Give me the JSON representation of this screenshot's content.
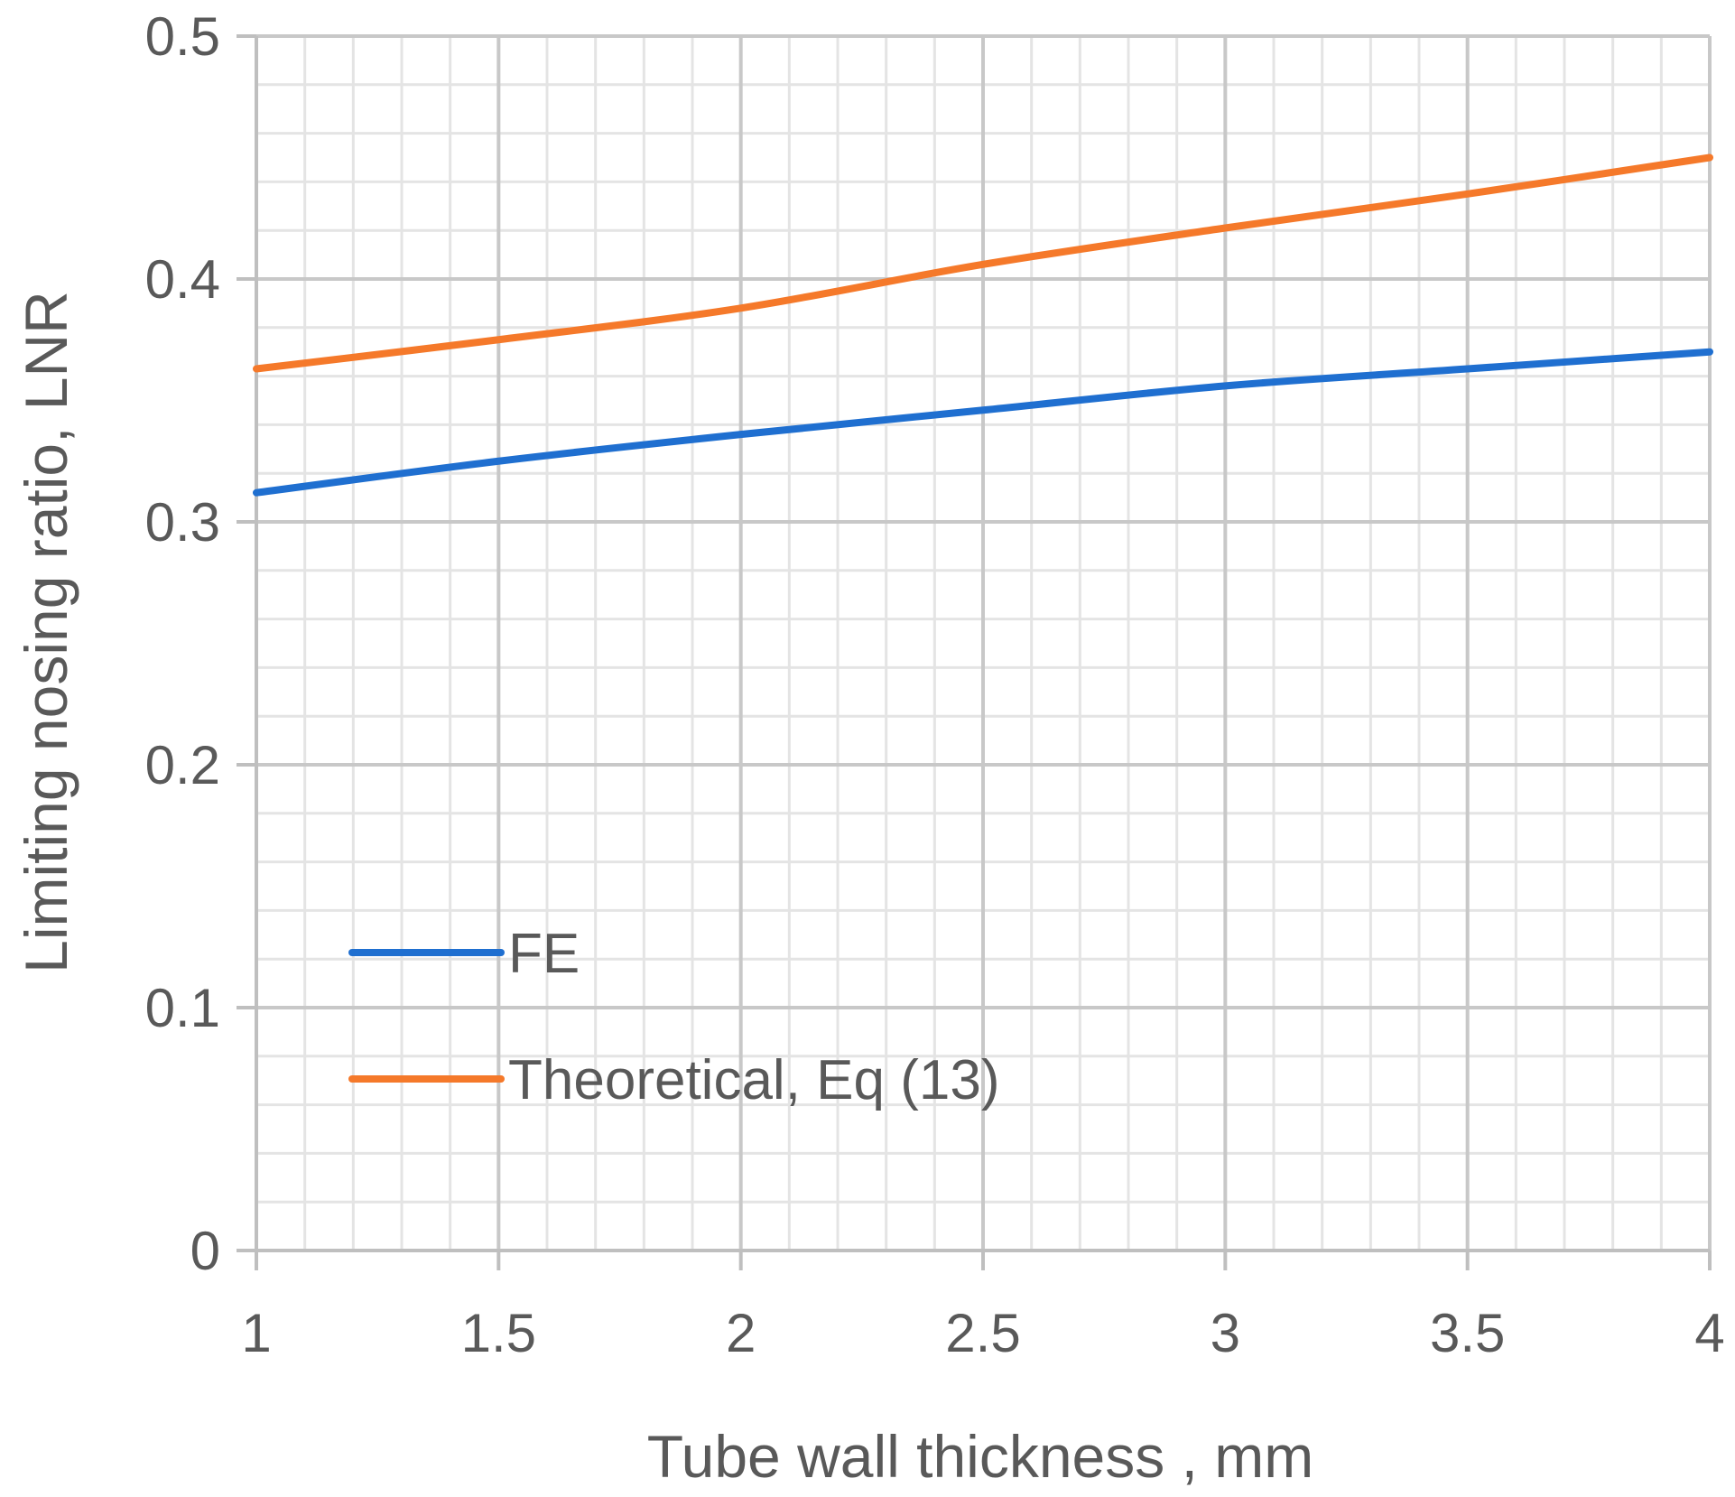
{
  "chart_data": {
    "type": "line",
    "title": "",
    "xlabel": "Tube wall thickness , mm",
    "ylabel": "Limiting nosing ratio, LNR",
    "xlim": [
      1,
      4
    ],
    "ylim": [
      0,
      0.5
    ],
    "x_ticks": [
      1,
      1.5,
      2,
      2.5,
      3,
      3.5,
      4
    ],
    "y_ticks": [
      0,
      0.1,
      0.2,
      0.3,
      0.4,
      0.5
    ],
    "x_tick_labels": [
      "1",
      "1.5",
      "2",
      "2.5",
      "3",
      "3.5",
      "4"
    ],
    "y_tick_labels": [
      "0",
      "0.1",
      "0.2",
      "0.3",
      "0.4",
      "0.5"
    ],
    "grid": true,
    "minor_grid": true,
    "legend_position": "lower-left",
    "series": [
      {
        "name": "FE",
        "color": "#1F6FD0",
        "x": [
          1,
          1.5,
          2,
          2.5,
          3,
          3.5,
          4
        ],
        "values": [
          0.312,
          0.325,
          0.336,
          0.346,
          0.356,
          0.363,
          0.37
        ]
      },
      {
        "name": "Theoretical, Eq (13)",
        "color": "#F5792A",
        "x": [
          1,
          1.5,
          2,
          2.5,
          3,
          3.5,
          4
        ],
        "values": [
          0.363,
          0.375,
          0.388,
          0.406,
          0.421,
          0.435,
          0.45
        ]
      }
    ]
  }
}
